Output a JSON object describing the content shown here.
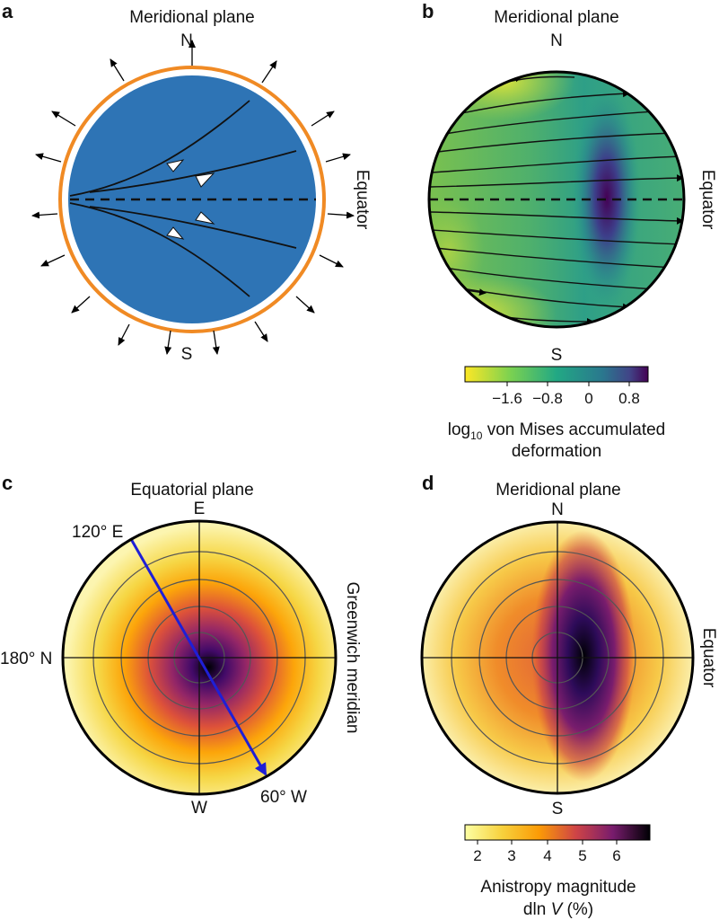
{
  "panels": {
    "a": {
      "letter": "a",
      "title": "Meridional plane",
      "north": "N",
      "south": "S",
      "equator": "Equator"
    },
    "b": {
      "letter": "b",
      "title": "Meridional plane",
      "north": "N",
      "south": "S",
      "equator": "Equator",
      "colorbar": {
        "ticks": [
          "−1.6",
          "−0.8",
          "0",
          "0.8"
        ],
        "label_main": "log",
        "label_sub": "10",
        "label_rest": " von Mises accumulated",
        "label_line2": "deformation"
      }
    },
    "c": {
      "letter": "c",
      "title": "Equatorial plane",
      "top": "E",
      "bottom": "W",
      "left": "180° N",
      "right": "Greenwich meridian",
      "line_start": "120° E",
      "line_end": "60° W"
    },
    "d": {
      "letter": "d",
      "title": "Meridional plane",
      "north": "N",
      "south": "S",
      "equator": "Equator",
      "colorbar": {
        "ticks": [
          "2",
          "3",
          "4",
          "5",
          "6"
        ],
        "label_line1": "Anistropy magnitude",
        "label_line2_prefix": "dln ",
        "label_line2_var": "V",
        "label_line2_suffix": " (%)"
      }
    }
  },
  "colors": {
    "ocean_blue": "#2e74b5",
    "ring_orange": "#f08a24",
    "blue_line": "#1f1fd6"
  }
}
